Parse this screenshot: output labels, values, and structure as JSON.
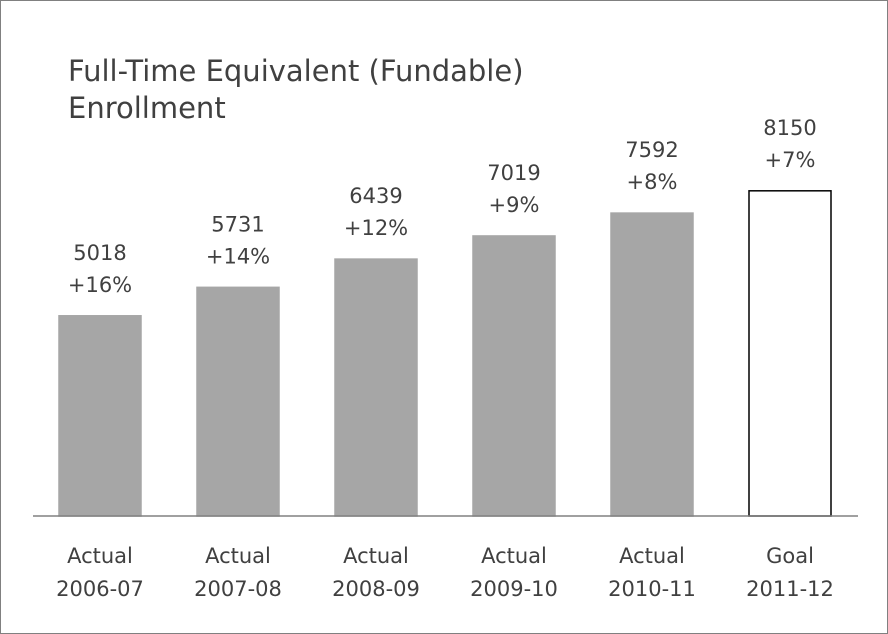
{
  "chart_data": {
    "type": "bar",
    "title": [
      "Full-Time Equivalent (Fundable)",
      "Enrollment"
    ],
    "categories": [
      [
        "Actual",
        "2006-07"
      ],
      [
        "Actual",
        "2007-08"
      ],
      [
        "Actual",
        "2008-09"
      ],
      [
        "Actual",
        "2009-10"
      ],
      [
        "Actual",
        "2010-11"
      ],
      [
        "Goal",
        "2011-12"
      ]
    ],
    "values": [
      5018,
      5731,
      6439,
      7019,
      7592,
      8150
    ],
    "growth": {
      "values": [
        16,
        14,
        12,
        9,
        8,
        7
      ],
      "value_labels": [
        "+16%",
        "+14%",
        "+12%",
        "+9%",
        "+8%",
        "+7%"
      ]
    },
    "colors": [
      "#a6a6a6",
      "#a6a6a6",
      "#a6a6a6",
      "#a6a6a6",
      "#a6a6a6",
      "#ffffff"
    ],
    "edgecolors": [
      "#a6a6a6",
      "#a6a6a6",
      "#a6a6a6",
      "#a6a6a6",
      "#a6a6a6",
      "#000000"
    ],
    "ylim": [
      0,
      10000
    ]
  }
}
